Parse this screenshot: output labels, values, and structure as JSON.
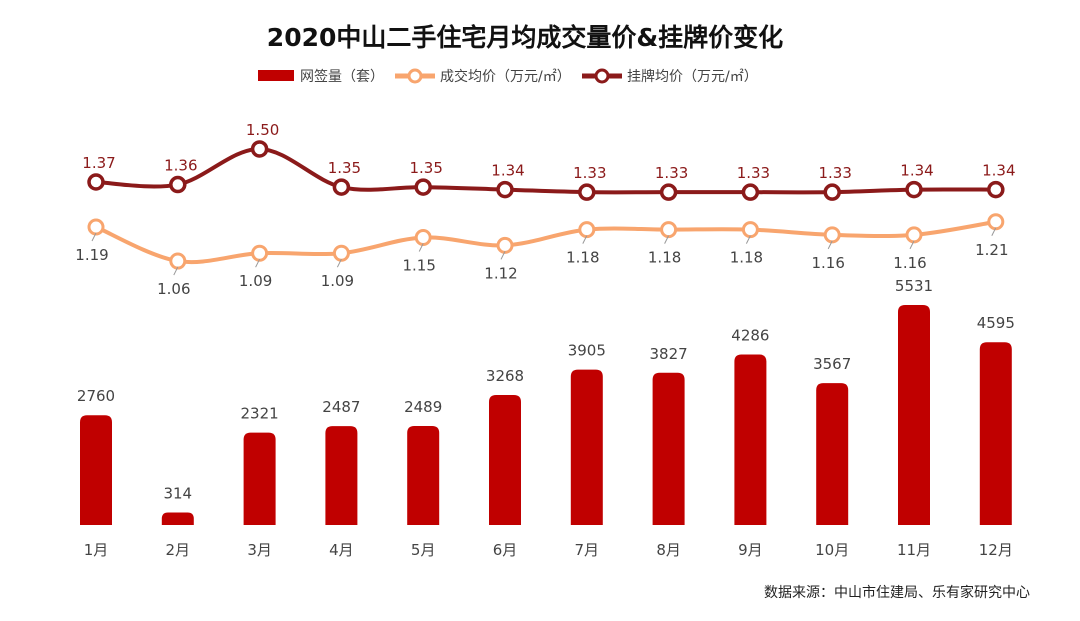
{
  "chart_data": {
    "type": "bar+line",
    "title": "2020中山二手住宅月均成交量价&挂牌价变化",
    "categories": [
      "1月",
      "2月",
      "3月",
      "4月",
      "5月",
      "6月",
      "7月",
      "8月",
      "9月",
      "10月",
      "11月",
      "12月"
    ],
    "series": [
      {
        "name": "网签量（套）",
        "type": "bar",
        "color": "#c00000",
        "values": [
          2760,
          314,
          2321,
          2487,
          2489,
          3268,
          3905,
          3827,
          4286,
          3567,
          5531,
          4595
        ]
      },
      {
        "name": "成交均价（万元/㎡）",
        "type": "line",
        "color": "#f8a56e",
        "values": [
          1.19,
          1.06,
          1.09,
          1.09,
          1.15,
          1.12,
          1.18,
          1.18,
          1.18,
          1.16,
          1.16,
          1.21
        ]
      },
      {
        "name": "挂牌均价（万元/㎡）",
        "type": "line",
        "color": "#8b1a1a",
        "values": [
          1.37,
          1.36,
          1.5,
          1.35,
          1.35,
          1.34,
          1.33,
          1.33,
          1.33,
          1.33,
          1.34,
          1.34
        ]
      }
    ],
    "legend_position": "top",
    "grid": false,
    "source": "数据来源：中山市住建局、乐有家研究中心"
  }
}
